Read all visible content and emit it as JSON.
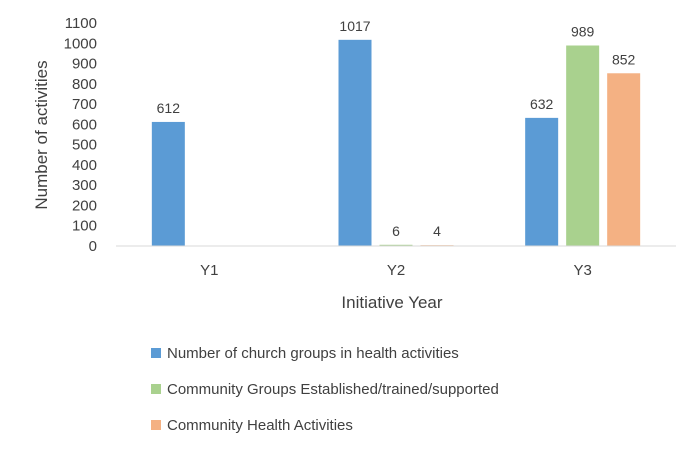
{
  "chart_data": {
    "type": "bar",
    "categories": [
      "Y1",
      "Y2",
      "Y3"
    ],
    "series": [
      {
        "name": "Number of church groups in health activities",
        "values": [
          612,
          1017,
          632
        ],
        "color": "#5b9bd5"
      },
      {
        "name": "Community Groups Established/trained/supported",
        "values": [
          null,
          6,
          989
        ],
        "color": "#a9d18e"
      },
      {
        "name": "Community Health Activities",
        "values": [
          null,
          4,
          852
        ],
        "color": "#f4b183"
      }
    ],
    "data_labels": [
      [
        "612",
        "1017",
        "632"
      ],
      [
        "",
        "6",
        "989"
      ],
      [
        "",
        "4",
        "852"
      ]
    ],
    "xlabel": "Initiative Year",
    "ylabel": "Number of activities",
    "ylim": [
      0,
      1100
    ],
    "yticks": [
      0,
      100,
      200,
      300,
      400,
      500,
      600,
      700,
      800,
      900,
      1000,
      1100
    ],
    "grid": false,
    "legend_position": "bottom"
  }
}
